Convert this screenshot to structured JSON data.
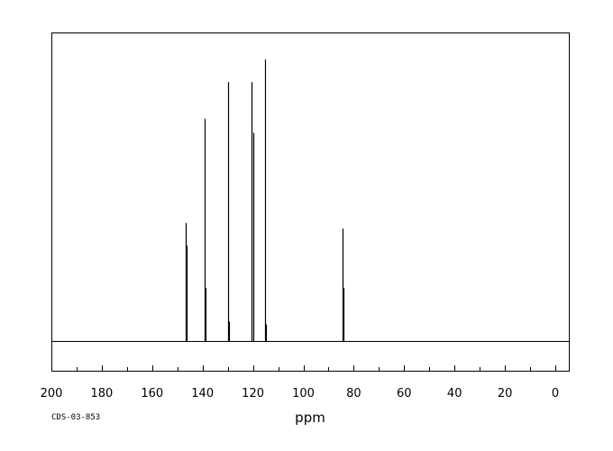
{
  "chart_data": {
    "type": "line",
    "title": "",
    "xlabel": "ppm",
    "ylabel": "",
    "x_reversed": true,
    "xlim": [
      200,
      -5
    ],
    "x_ticks": [
      200,
      180,
      160,
      140,
      120,
      100,
      80,
      60,
      40,
      20,
      0
    ],
    "grid": false,
    "legend": "none",
    "footer_code": "CDS-03-853",
    "peaks": [
      {
        "ppm": 146.8,
        "height": 0.42
      },
      {
        "ppm": 146.5,
        "height": 0.34
      },
      {
        "ppm": 139.3,
        "height": 0.79
      },
      {
        "ppm": 138.9,
        "height": 0.19
      },
      {
        "ppm": 129.8,
        "height": 0.92
      },
      {
        "ppm": 129.5,
        "height": 0.07
      },
      {
        "ppm": 120.4,
        "height": 0.92
      },
      {
        "ppm": 120.0,
        "height": 0.74
      },
      {
        "ppm": 115.2,
        "height": 1.0
      },
      {
        "ppm": 114.9,
        "height": 0.06
      },
      {
        "ppm": 84.3,
        "height": 0.4
      },
      {
        "ppm": 84.0,
        "height": 0.19
      }
    ],
    "colors": {
      "line": "#000000",
      "frame": "#000000",
      "background": "#ffffff"
    }
  }
}
